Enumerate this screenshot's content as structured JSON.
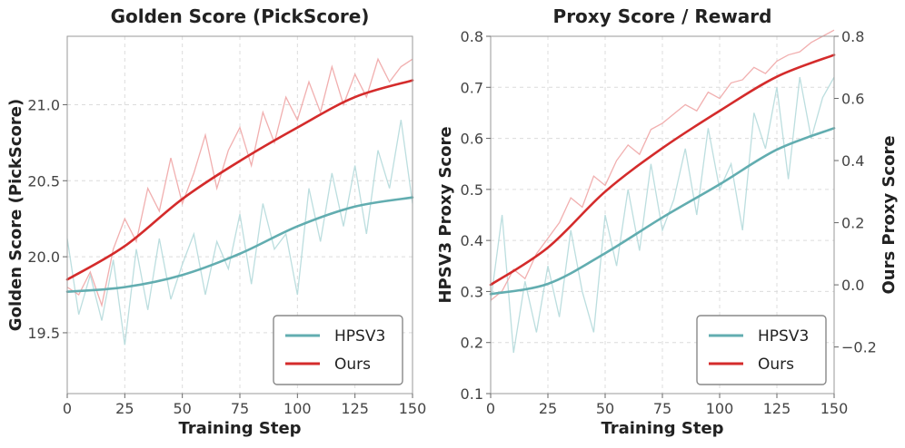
{
  "colors": {
    "hpsv3": "#62adb0",
    "ours": "#d42b2b",
    "hpsv3_raw": "#b5dadb",
    "ours_raw": "#efa6a6"
  },
  "chart_data": [
    {
      "type": "line",
      "title": "Golden Score (PickScore)",
      "xlabel": "Training Step",
      "ylabel": "Golden Score (PickScore)",
      "xlim": [
        0,
        150
      ],
      "ylim": [
        19.1,
        21.45
      ],
      "xticks": [
        0,
        25,
        50,
        75,
        100,
        125,
        150
      ],
      "yticks": [
        19.5,
        20.0,
        20.5,
        21.0
      ],
      "ytick_labels": [
        "19.5",
        "20.0",
        "20.5",
        "21.0"
      ],
      "grid": true,
      "legend": "lower-right",
      "series": [
        {
          "name": "HPSV3",
          "color_key": "hpsv3",
          "x": [
            0,
            25,
            50,
            75,
            100,
            125,
            150
          ],
          "y": [
            19.77,
            19.8,
            19.88,
            20.02,
            20.2,
            20.33,
            20.39
          ]
        },
        {
          "name": "Ours",
          "color_key": "ours",
          "x": [
            0,
            25,
            50,
            75,
            100,
            125,
            150
          ],
          "y": [
            19.85,
            20.07,
            20.38,
            20.63,
            20.85,
            21.05,
            21.16
          ]
        }
      ],
      "raw_series": [
        {
          "color_key": "hpsv3_raw",
          "x": [
            0,
            5,
            10,
            15,
            20,
            25,
            30,
            35,
            40,
            45,
            50,
            55,
            60,
            65,
            70,
            75,
            80,
            85,
            90,
            95,
            100,
            105,
            110,
            115,
            120,
            125,
            130,
            135,
            140,
            145,
            150
          ],
          "y": [
            20.12,
            19.62,
            19.88,
            19.58,
            19.98,
            19.42,
            20.05,
            19.65,
            20.12,
            19.72,
            19.95,
            20.15,
            19.75,
            20.1,
            19.92,
            20.28,
            19.82,
            20.35,
            20.05,
            20.15,
            19.75,
            20.45,
            20.1,
            20.55,
            20.2,
            20.6,
            20.15,
            20.7,
            20.45,
            20.9,
            20.35
          ]
        },
        {
          "color_key": "ours_raw",
          "x": [
            0,
            5,
            10,
            15,
            20,
            25,
            30,
            35,
            40,
            45,
            50,
            55,
            60,
            65,
            70,
            75,
            80,
            85,
            90,
            95,
            100,
            105,
            110,
            115,
            120,
            125,
            130,
            135,
            140,
            145,
            150
          ],
          "y": [
            19.8,
            19.75,
            19.9,
            19.68,
            20.05,
            20.25,
            20.1,
            20.45,
            20.3,
            20.65,
            20.35,
            20.55,
            20.8,
            20.45,
            20.7,
            20.85,
            20.6,
            20.95,
            20.75,
            21.05,
            20.9,
            21.15,
            20.95,
            21.25,
            21.0,
            21.2,
            21.05,
            21.3,
            21.15,
            21.25,
            21.3
          ]
        }
      ]
    },
    {
      "type": "line",
      "title": "Proxy Score / Reward",
      "xlabel": "Training Step",
      "ylabel": "HPSV3 Proxy Score",
      "ylabel_right": "Ours Proxy Score",
      "xlim": [
        0,
        150
      ],
      "ylim": [
        0.1,
        0.8
      ],
      "ylim_right": [
        -0.35,
        0.8
      ],
      "xticks": [
        0,
        25,
        50,
        75,
        100,
        125,
        150
      ],
      "yticks": [
        0.1,
        0.2,
        0.3,
        0.4,
        0.5,
        0.6,
        0.7,
        0.8
      ],
      "ytick_labels": [
        "0.1",
        "0.2",
        "0.3",
        "0.4",
        "0.5",
        "0.6",
        "0.7",
        "0.8"
      ],
      "yticks_right": [
        -0.2,
        0.0,
        0.2,
        0.4,
        0.6,
        0.8
      ],
      "ytick_labels_right": [
        "−0.2",
        "0.0",
        "0.2",
        "0.4",
        "0.6",
        "0.8"
      ],
      "grid": true,
      "legend": "lower-right",
      "series": [
        {
          "name": "HPSV3",
          "color_key": "hpsv3",
          "axis": "left",
          "x": [
            0,
            25,
            50,
            75,
            100,
            125,
            150
          ],
          "y": [
            0.295,
            0.315,
            0.375,
            0.445,
            0.51,
            0.578,
            0.62
          ]
        },
        {
          "name": "Ours",
          "color_key": "ours",
          "axis": "right",
          "x": [
            0,
            25,
            50,
            75,
            100,
            125,
            150
          ],
          "y": [
            0.0,
            0.12,
            0.3,
            0.44,
            0.56,
            0.67,
            0.74
          ]
        }
      ],
      "raw_series": [
        {
          "color_key": "hpsv3_raw",
          "axis": "left",
          "x": [
            0,
            5,
            10,
            15,
            20,
            25,
            30,
            35,
            40,
            45,
            50,
            55,
            60,
            65,
            70,
            75,
            80,
            85,
            90,
            95,
            100,
            105,
            110,
            115,
            120,
            125,
            130,
            135,
            140,
            145,
            150
          ],
          "y": [
            0.28,
            0.45,
            0.18,
            0.32,
            0.22,
            0.35,
            0.25,
            0.42,
            0.3,
            0.22,
            0.45,
            0.35,
            0.5,
            0.38,
            0.55,
            0.42,
            0.48,
            0.58,
            0.45,
            0.62,
            0.5,
            0.55,
            0.42,
            0.65,
            0.58,
            0.7,
            0.52,
            0.72,
            0.6,
            0.68,
            0.72
          ]
        },
        {
          "color_key": "ours_raw",
          "axis": "right",
          "x": [
            0,
            5,
            10,
            15,
            20,
            25,
            30,
            35,
            40,
            45,
            50,
            55,
            60,
            65,
            70,
            75,
            80,
            85,
            90,
            95,
            100,
            105,
            110,
            115,
            120,
            125,
            130,
            135,
            140,
            145,
            150
          ],
          "y": [
            -0.05,
            -0.02,
            0.05,
            0.02,
            0.1,
            0.15,
            0.2,
            0.28,
            0.25,
            0.35,
            0.32,
            0.4,
            0.45,
            0.42,
            0.5,
            0.52,
            0.55,
            0.58,
            0.56,
            0.62,
            0.6,
            0.65,
            0.66,
            0.7,
            0.68,
            0.72,
            0.74,
            0.75,
            0.78,
            0.8,
            0.82
          ]
        }
      ]
    }
  ]
}
